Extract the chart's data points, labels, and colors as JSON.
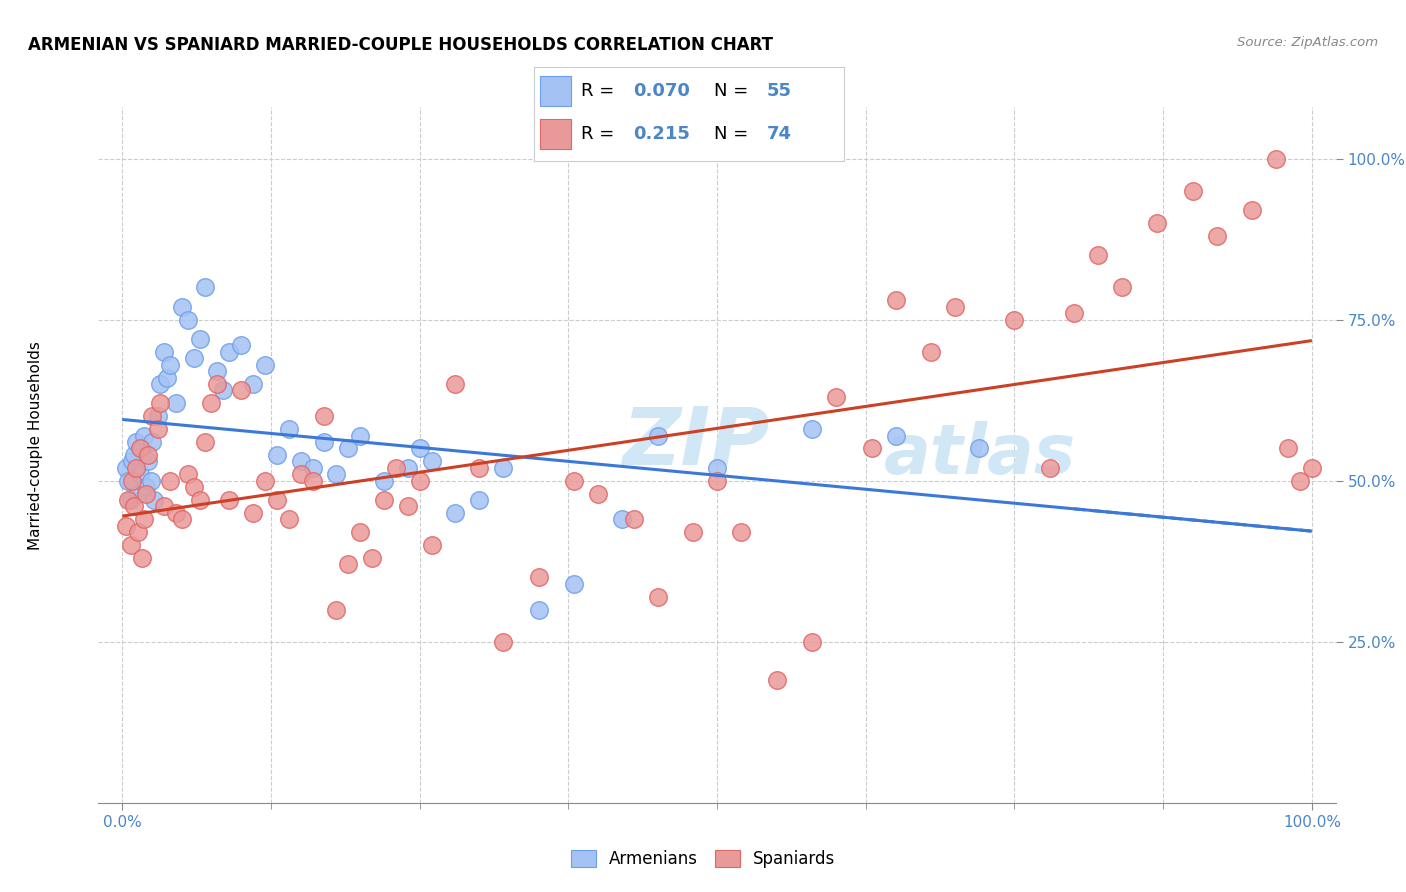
{
  "title": "ARMENIAN VS SPANIARD MARRIED-COUPLE HOUSEHOLDS CORRELATION CHART",
  "source": "Source: ZipAtlas.com",
  "ylabel": "Married-couple Households",
  "legend_armenian_label": "Armenians",
  "legend_spaniard_label": "Spaniards",
  "r_armenian": "0.070",
  "n_armenian": "55",
  "r_spaniard": "0.215",
  "n_spaniard": "74",
  "color_armenian_fill": "#a4c2f4",
  "color_armenian_edge": "#6d9eeb",
  "color_spaniard_fill": "#ea9999",
  "color_spaniard_edge": "#e06666",
  "color_blue_text": "#4a86c8",
  "line_color_armenian": "#3c78d8",
  "line_color_spaniard": "#cc4125",
  "watermark_zip": "ZIP",
  "watermark_atlas": "atlas",
  "watermark_color": "#cce5f6",
  "armenian_x": [
    0.3,
    0.5,
    0.7,
    0.8,
    1.0,
    1.2,
    1.3,
    1.5,
    1.7,
    1.8,
    2.0,
    2.2,
    2.4,
    2.5,
    2.7,
    3.0,
    3.2,
    3.5,
    3.8,
    4.0,
    4.5,
    5.0,
    5.5,
    6.0,
    6.5,
    7.0,
    8.0,
    8.5,
    9.0,
    10.0,
    11.0,
    12.0,
    13.0,
    14.0,
    15.0,
    16.0,
    17.0,
    18.0,
    19.0,
    20.0,
    22.0,
    24.0,
    25.0,
    26.0,
    28.0,
    30.0,
    32.0,
    35.0,
    38.0,
    42.0,
    45.0,
    50.0,
    58.0,
    65.0,
    72.0
  ],
  "armenian_y": [
    52,
    50,
    47,
    53,
    54,
    56,
    48,
    51,
    55,
    57,
    49,
    53,
    50,
    56,
    47,
    60,
    65,
    70,
    66,
    68,
    62,
    77,
    75,
    69,
    72,
    80,
    67,
    64,
    70,
    71,
    65,
    68,
    54,
    58,
    53,
    52,
    56,
    51,
    55,
    57,
    50,
    52,
    55,
    53,
    45,
    47,
    52,
    30,
    34,
    44,
    57,
    52,
    58,
    57,
    55
  ],
  "spaniard_x": [
    0.3,
    0.5,
    0.7,
    0.8,
    1.0,
    1.2,
    1.3,
    1.5,
    1.7,
    1.8,
    2.0,
    2.2,
    2.5,
    3.0,
    3.2,
    3.5,
    4.0,
    4.5,
    5.0,
    5.5,
    6.0,
    6.5,
    7.0,
    7.5,
    8.0,
    9.0,
    10.0,
    11.0,
    12.0,
    13.0,
    14.0,
    15.0,
    16.0,
    17.0,
    18.0,
    19.0,
    20.0,
    21.0,
    22.0,
    23.0,
    24.0,
    25.0,
    26.0,
    28.0,
    30.0,
    32.0,
    35.0,
    38.0,
    40.0,
    43.0,
    45.0,
    48.0,
    50.0,
    52.0,
    55.0,
    58.0,
    60.0,
    63.0,
    65.0,
    68.0,
    70.0,
    75.0,
    78.0,
    80.0,
    82.0,
    84.0,
    87.0,
    90.0,
    92.0,
    95.0,
    97.0,
    98.0,
    99.0,
    100.0
  ],
  "spaniard_y": [
    43,
    47,
    40,
    50,
    46,
    52,
    42,
    55,
    38,
    44,
    48,
    54,
    60,
    58,
    62,
    46,
    50,
    45,
    44,
    51,
    49,
    47,
    56,
    62,
    65,
    47,
    64,
    45,
    50,
    47,
    44,
    51,
    50,
    60,
    30,
    37,
    42,
    38,
    47,
    52,
    46,
    50,
    40,
    65,
    52,
    25,
    35,
    50,
    48,
    44,
    32,
    42,
    50,
    42,
    19,
    25,
    63,
    55,
    78,
    70,
    77,
    75,
    52,
    76,
    85,
    80,
    90,
    95,
    88,
    92,
    100,
    55,
    50,
    52
  ],
  "xlim": [
    -2,
    102
  ],
  "ylim": [
    0,
    108
  ],
  "yticks": [
    25,
    50,
    75,
    100
  ],
  "ytick_labels": [
    "25.0%",
    "50.0%",
    "75.0%",
    "100.0%"
  ],
  "xticks_show": [
    0,
    100
  ],
  "xtick_labels": [
    "0.0%",
    "100.0%"
  ],
  "grid_xticks": [
    0,
    12.5,
    25,
    37.5,
    50,
    62.5,
    75,
    87.5,
    100
  ]
}
